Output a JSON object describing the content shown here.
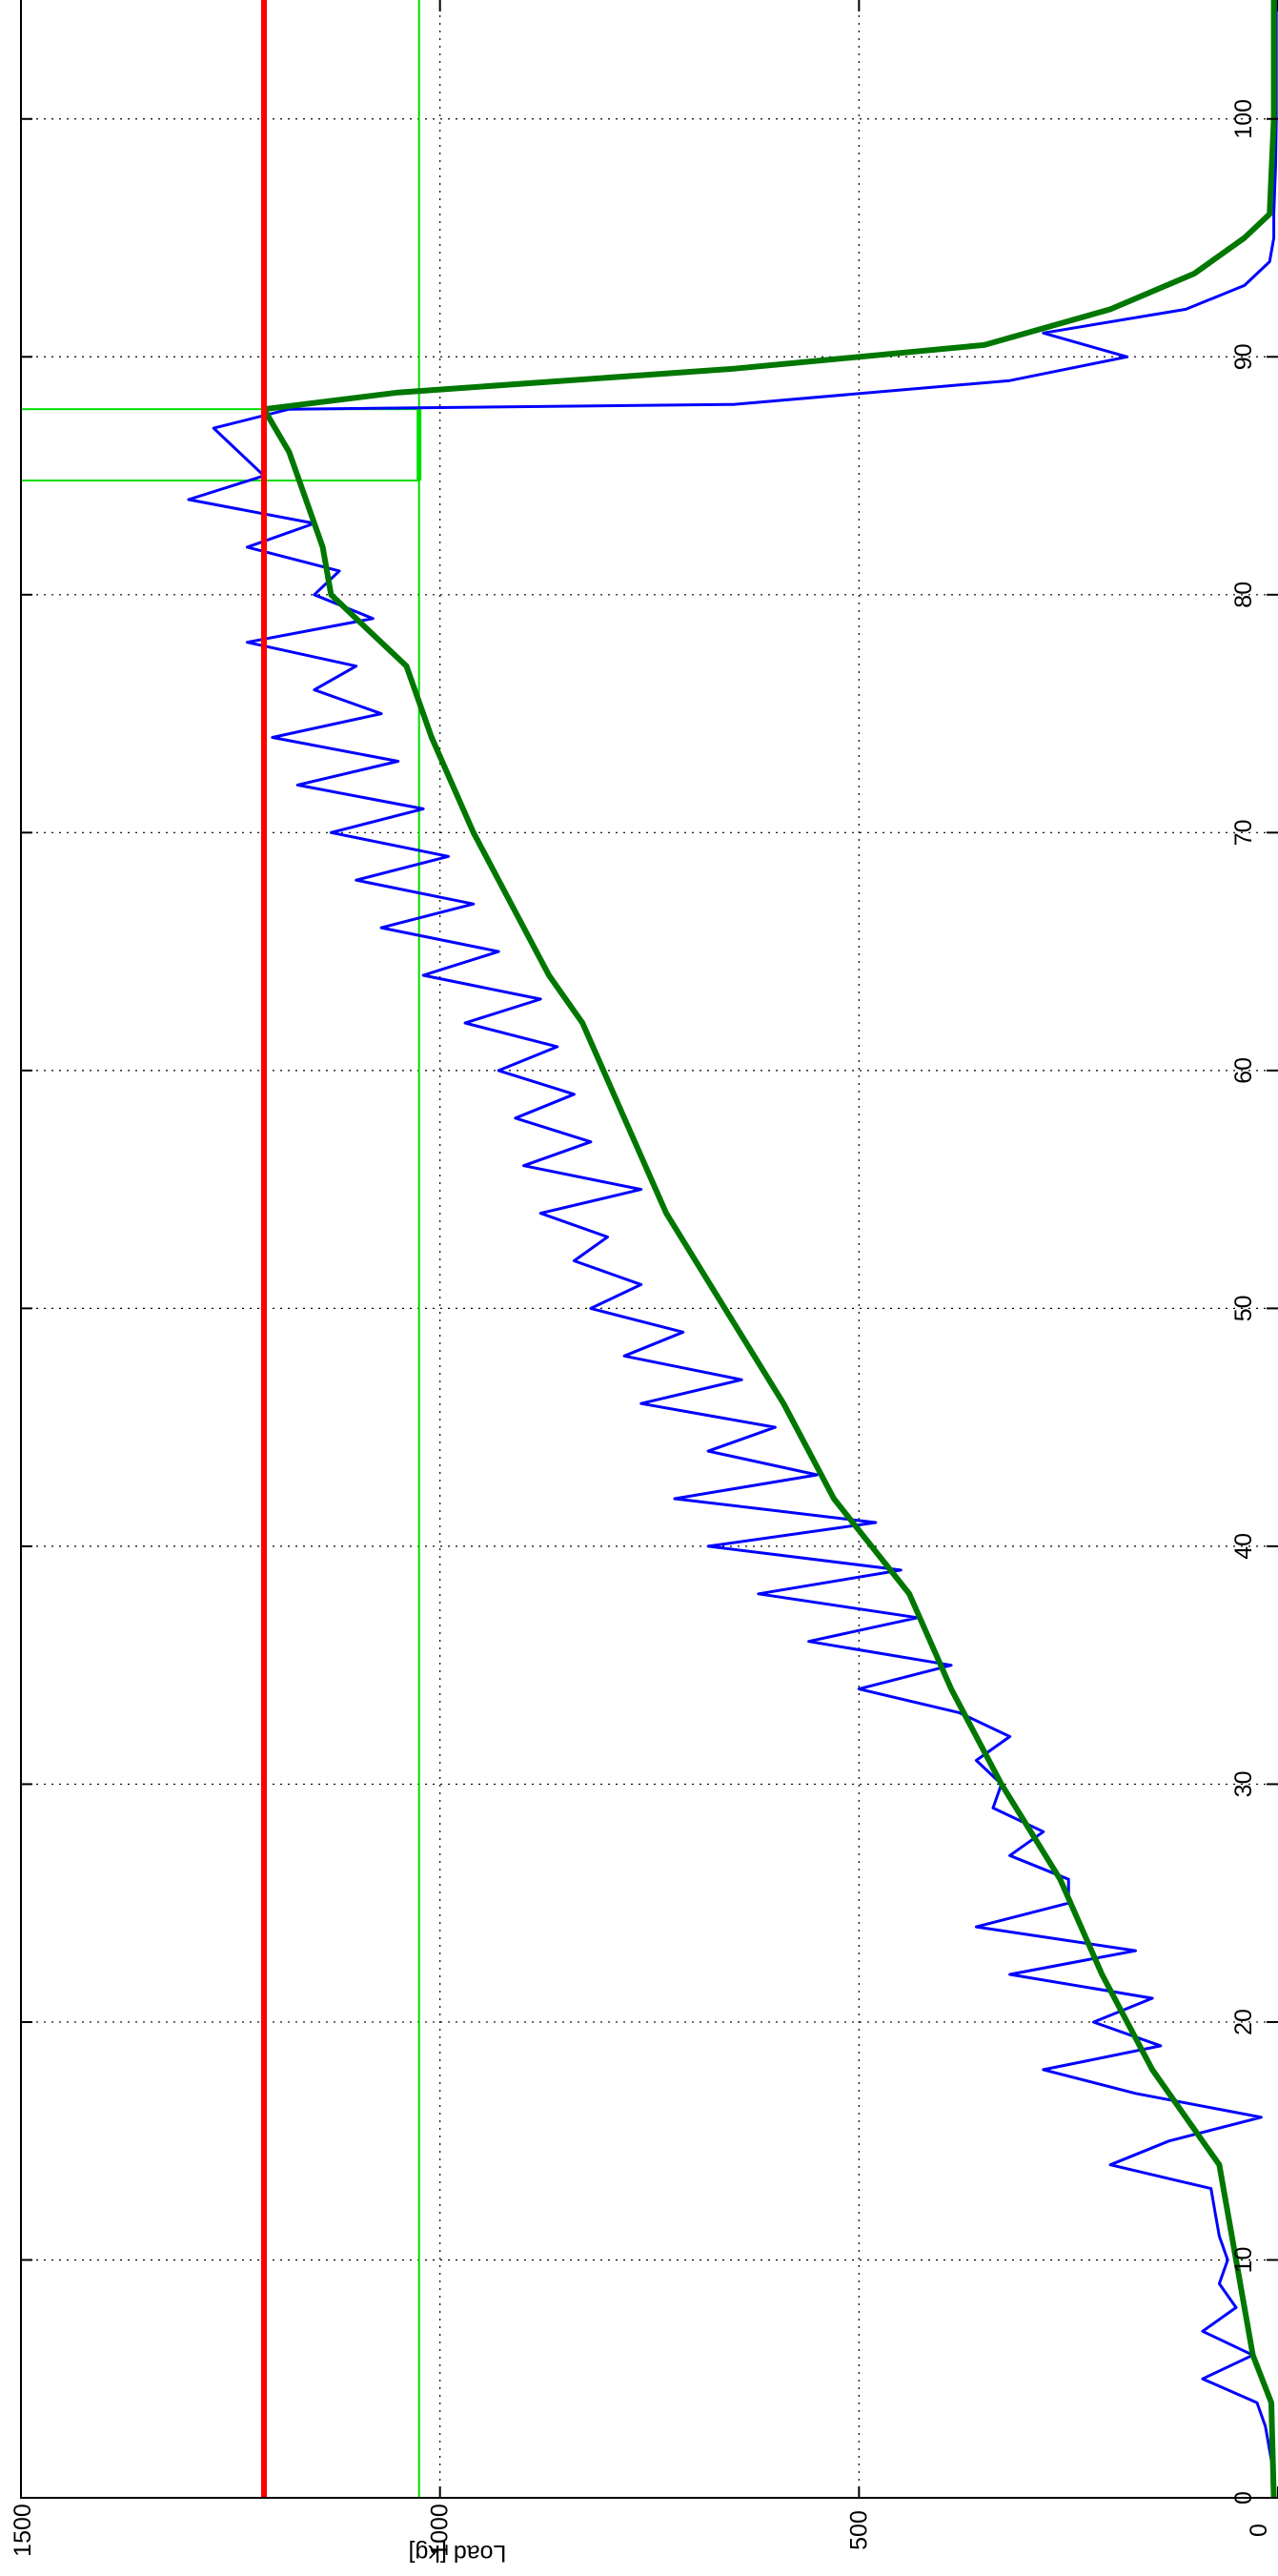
{
  "chart_data": {
    "type": "line",
    "orientation": "rotated-90-ccw",
    "xlabel": "",
    "ylabel": "Load [kg]",
    "xlim": [
      0,
      105
    ],
    "ylim": [
      0,
      1500
    ],
    "x_ticks": [
      "0",
      "10",
      "20",
      "30",
      "40",
      "50",
      "60",
      "70",
      "80",
      "90",
      "100"
    ],
    "y_ticks": [
      "0",
      "500",
      "1000",
      "1500"
    ],
    "grid": true,
    "colors": {
      "raw": "#0000ff",
      "smoothed": "#007700",
      "limit": "#ff0000",
      "threshold": "#00dd00"
    },
    "series": [
      {
        "key": "raw",
        "x": [
          0,
          1,
          2,
          3,
          4,
          5,
          6,
          7,
          8,
          9,
          10,
          11,
          12,
          13,
          14,
          15,
          16,
          17,
          18,
          19,
          20,
          21,
          22,
          23,
          24,
          25,
          26,
          27,
          28,
          29,
          30,
          31,
          32,
          33,
          34,
          35,
          36,
          37,
          38,
          39,
          40,
          41,
          42,
          43,
          44,
          45,
          46,
          47,
          48,
          49,
          50,
          51,
          52,
          53,
          54,
          55,
          56,
          57,
          58,
          59,
          60,
          61,
          62,
          63,
          64,
          65,
          66,
          67,
          68,
          69,
          70,
          71,
          72,
          73,
          74,
          75,
          76,
          77,
          78,
          79,
          80,
          81,
          82,
          83,
          84,
          85,
          86,
          87,
          87.8,
          88,
          89,
          90,
          91,
          92,
          93,
          94,
          95,
          96,
          98,
          100,
          105
        ],
        "y": [
          5,
          5,
          10,
          15,
          25,
          90,
          30,
          90,
          50,
          70,
          60,
          70,
          75,
          80,
          200,
          130,
          20,
          170,
          280,
          140,
          220,
          150,
          320,
          170,
          360,
          250,
          250,
          320,
          280,
          340,
          330,
          360,
          320,
          380,
          500,
          390,
          560,
          430,
          620,
          450,
          680,
          480,
          720,
          550,
          680,
          600,
          760,
          640,
          780,
          710,
          820,
          760,
          840,
          800,
          880,
          760,
          900,
          820,
          910,
          840,
          930,
          860,
          970,
          880,
          1020,
          930,
          1070,
          960,
          1100,
          990,
          1130,
          1020,
          1170,
          1050,
          1200,
          1070,
          1150,
          1100,
          1230,
          1080,
          1150,
          1120,
          1230,
          1150,
          1300,
          1210,
          1240,
          1270,
          1180,
          650,
          320,
          180,
          280,
          110,
          40,
          10,
          5,
          5,
          3,
          2,
          2
        ]
      },
      {
        "key": "smoothed",
        "x": [
          0,
          4,
          6,
          10,
          14,
          18,
          22,
          26,
          30,
          34,
          38,
          42,
          46,
          50,
          54,
          58,
          62,
          64,
          66,
          70,
          74,
          77,
          79,
          80,
          82,
          84,
          86,
          87.8,
          88.5,
          89.5,
          90.5,
          92,
          93.5,
          95,
          96,
          100,
          105
        ],
        "y": [
          5,
          8,
          30,
          50,
          70,
          150,
          210,
          260,
          330,
          390,
          440,
          530,
          590,
          660,
          730,
          780,
          830,
          870,
          900,
          960,
          1010,
          1040,
          1100,
          1130,
          1140,
          1160,
          1180,
          1210,
          1050,
          650,
          350,
          200,
          100,
          40,
          10,
          5,
          5
        ]
      },
      {
        "key": "limit",
        "x": [
          0,
          105
        ],
        "y": [
          1210,
          1210
        ]
      },
      {
        "key": "threshold",
        "x": [
          0,
          105
        ],
        "y": [
          1025,
          1025
        ]
      }
    ],
    "threshold_box": {
      "x_start": 84.8,
      "x_end": 87.8,
      "y_low": 1025,
      "y_high": 1500
    }
  }
}
